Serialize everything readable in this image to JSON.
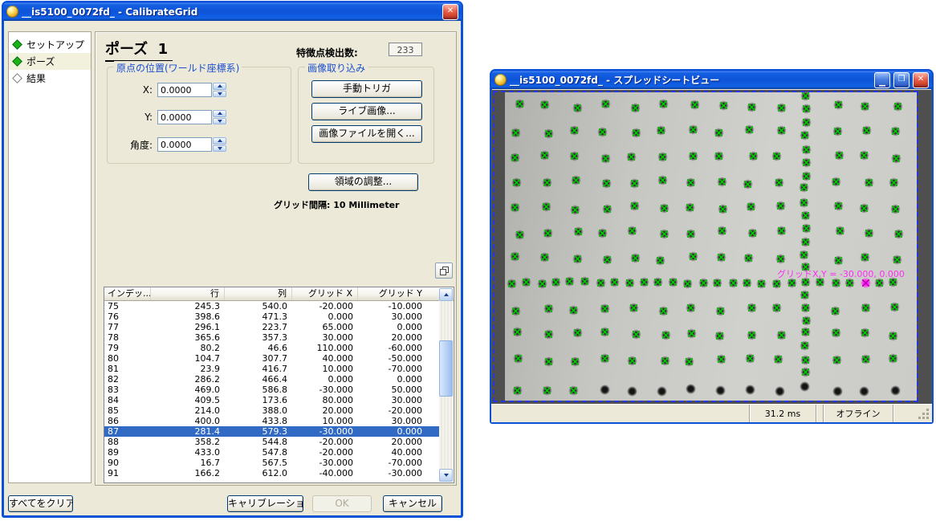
{
  "colors": {
    "selection_blue": "#316ac5",
    "marker_green": "#00c300",
    "highlight_magenta": "#ff2cf4",
    "titlebar_blue": "#0a51d8"
  },
  "calibrate_dialog": {
    "title": "__is5100_0072fd_ - CalibrateGrid",
    "sidebar": {
      "items": [
        {
          "label": "セットアップ",
          "bullet": "filled",
          "selected": false
        },
        {
          "label": "ポーズ",
          "bullet": "filled",
          "selected": true
        },
        {
          "label": "結果",
          "bullet": "hollow",
          "selected": false
        }
      ]
    },
    "pose": {
      "heading": "ポーズ  1",
      "feature_count_label": "特徴点検出数:",
      "feature_count": "233"
    },
    "origin_group": {
      "title": "原点の位置(ワールド座標系)",
      "fields": [
        {
          "label": "X:",
          "value": "0.0000"
        },
        {
          "label": "Y:",
          "value": "0.0000"
        },
        {
          "label": "角度:",
          "value": "0.0000"
        }
      ]
    },
    "capture_group": {
      "title": "画像取り込み",
      "buttons": [
        "手動トリガ",
        "ライブ画像...",
        "画像ファイルを開く..."
      ]
    },
    "region_button": "領域の調整...",
    "grid_spacing_text": "グリッド間隔: 10 Millimeter",
    "table": {
      "columns": [
        "インデッ...",
        "行",
        "列",
        "グリッド X",
        "グリッド Y"
      ],
      "rows": [
        [
          "75",
          "245.3",
          "540.0",
          "-20.000",
          "-10.000"
        ],
        [
          "76",
          "398.6",
          "471.3",
          "0.000",
          "30.000"
        ],
        [
          "77",
          "296.1",
          "223.7",
          "65.000",
          "0.000"
        ],
        [
          "78",
          "365.6",
          "357.3",
          "30.000",
          "20.000"
        ],
        [
          "79",
          "80.2",
          "46.6",
          "110.000",
          "-60.000"
        ],
        [
          "80",
          "104.7",
          "307.7",
          "40.000",
          "-50.000"
        ],
        [
          "81",
          "23.9",
          "416.7",
          "10.000",
          "-70.000"
        ],
        [
          "82",
          "286.2",
          "466.4",
          "0.000",
          "0.000"
        ],
        [
          "83",
          "469.0",
          "586.8",
          "-30.000",
          "50.000"
        ],
        [
          "84",
          "409.5",
          "173.6",
          "80.000",
          "30.000"
        ],
        [
          "85",
          "214.0",
          "388.0",
          "20.000",
          "-20.000"
        ],
        [
          "86",
          "400.0",
          "433.8",
          "10.000",
          "30.000"
        ],
        [
          "87",
          "281.4",
          "579.3",
          "-30.000",
          "0.000"
        ],
        [
          "88",
          "358.2",
          "544.8",
          "-20.000",
          "20.000"
        ],
        [
          "89",
          "433.0",
          "547.8",
          "-20.000",
          "40.000"
        ],
        [
          "90",
          "16.7",
          "567.5",
          "-30.000",
          "-70.000"
        ],
        [
          "91",
          "166.2",
          "612.0",
          "-40.000",
          "-30.000"
        ]
      ],
      "selected_row_index": "87"
    },
    "footer": {
      "clear": "すべてをクリア",
      "calibrate": "キャリブレーション",
      "ok": "OK",
      "ok_enabled": false,
      "cancel": "キャンセル"
    }
  },
  "spreadsheet_window": {
    "title": "__is5100_0072fd_ - スプレッドシートビュー",
    "overlay_label": "グリッドX,Y = -30.000, 0.000",
    "status": {
      "acquisition_time": "31.2 ms",
      "mode": "オフライン"
    }
  }
}
